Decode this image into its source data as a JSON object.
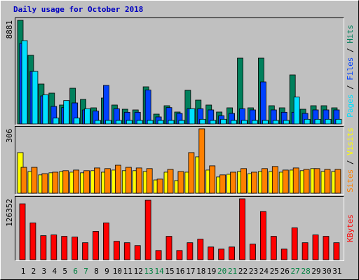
{
  "chart_data": [
    {
      "type": "bar",
      "title": "Daily usage for October 2018",
      "legend_separator": " / ",
      "ylim": [
        0,
        8881
      ],
      "yticks": [
        8881
      ],
      "series": [
        {
          "name": "Hits",
          "color": "#00805c",
          "values": [
            8881,
            5880,
            3420,
            2640,
            1620,
            3060,
            2100,
            1380,
            2220,
            1620,
            1260,
            1200,
            3180,
            840,
            1560,
            1020,
            2880,
            2040,
            1620,
            1020,
            1380,
            5640,
            1380,
            5640,
            1560,
            1380,
            4200,
            1260,
            1560,
            1560,
            1380
          ]
        },
        {
          "name": "Files",
          "color": "#0040ff",
          "values": [
            6900,
            4500,
            2400,
            1500,
            1400,
            1800,
            1200,
            1100,
            3300,
            1300,
            1000,
            1000,
            2900,
            600,
            1400,
            900,
            1300,
            1300,
            1200,
            700,
            900,
            1300,
            1200,
            3600,
            1200,
            1000,
            1000,
            900,
            1200,
            1200,
            1200
          ]
        },
        {
          "name": "Pages",
          "color": "#00e0ff",
          "values": [
            7140,
            4500,
            2500,
            500,
            2000,
            500,
            1300,
            300,
            300,
            300,
            300,
            300,
            300,
            300,
            300,
            300,
            1300,
            400,
            300,
            400,
            300,
            300,
            300,
            300,
            300,
            300,
            2300,
            400,
            400,
            400,
            400
          ]
        }
      ]
    },
    {
      "type": "bar",
      "legend_separator": " / ",
      "ylim": [
        0,
        306
      ],
      "yticks": [
        306
      ],
      "series": [
        {
          "name": "Visits",
          "color": "#ffff00",
          "values": [
            193,
            103,
            87,
            97,
            103,
            100,
            97,
            107,
            100,
            110,
            107,
            107,
            103,
            63,
            100,
            60,
            100,
            173,
            110,
            77,
            90,
            103,
            93,
            103,
            103,
            100,
            110,
            107,
            117,
            103,
            103
          ]
        },
        {
          "name": "Sites",
          "color": "#ff8000",
          "values": [
            123,
            123,
            93,
            100,
            107,
            110,
            107,
            120,
            117,
            133,
            123,
            120,
            117,
            67,
            113,
            103,
            193,
            306,
            130,
            87,
            100,
            117,
            100,
            117,
            127,
            110,
            120,
            113,
            117,
            113,
            113
          ]
        }
      ]
    },
    {
      "type": "bar",
      "ylim": [
        0,
        126352
      ],
      "yticks": [
        126352
      ],
      "categories": [
        "1",
        "2",
        "3",
        "4",
        "5",
        "6",
        "7",
        "8",
        "9",
        "10",
        "11",
        "12",
        "13",
        "14",
        "15",
        "16",
        "17",
        "18",
        "19",
        "20",
        "21",
        "22",
        "23",
        "24",
        "25",
        "26",
        "27",
        "28",
        "29",
        "30",
        "31"
      ],
      "category_colors": [
        "#000000",
        "#000000",
        "#000000",
        "#000000",
        "#000000",
        "#008040",
        "#008040",
        "#000000",
        "#000000",
        "#000000",
        "#000000",
        "#000000",
        "#008040",
        "#008040",
        "#000000",
        "#000000",
        "#000000",
        "#000000",
        "#000000",
        "#008040",
        "#008040",
        "#000000",
        "#000000",
        "#000000",
        "#000000",
        "#000000",
        "#008040",
        "#008040",
        "#000000",
        "#000000",
        "#000000"
      ],
      "series": [
        {
          "name": "KBytes",
          "color": "#ff0000",
          "values": [
            116000,
            76400,
            49900,
            51400,
            48500,
            47000,
            35300,
            58800,
            76400,
            38200,
            35300,
            29400,
            123400,
            19100,
            48500,
            19100,
            35300,
            42600,
            26400,
            22000,
            26400,
            126352,
            32300,
            99900,
            48500,
            22000,
            66100,
            35300,
            51400,
            48500,
            35300
          ]
        }
      ]
    }
  ]
}
